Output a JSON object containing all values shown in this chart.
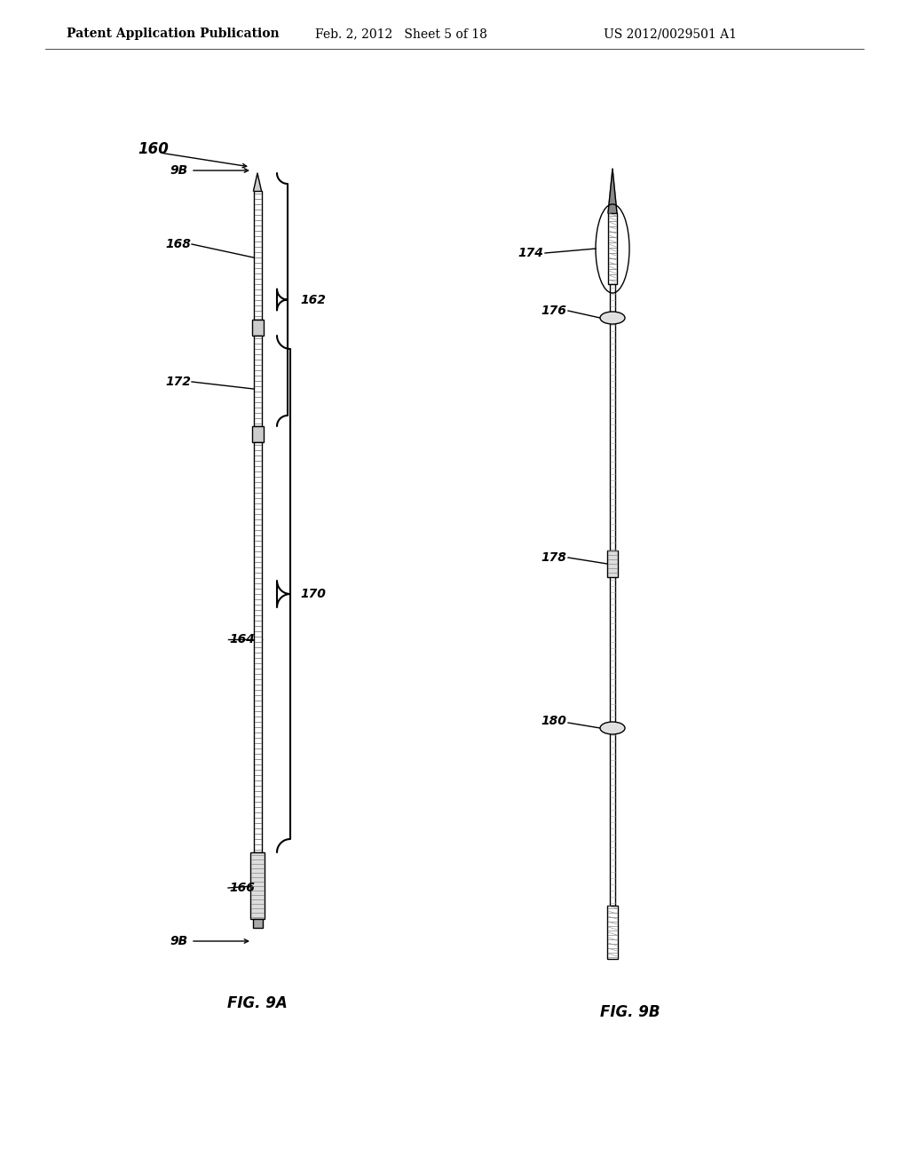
{
  "background_color": "#ffffff",
  "header_left": "Patent Application Publication",
  "header_center": "Feb. 2, 2012   Sheet 5 of 18",
  "header_right": "US 2012/0029501 A1",
  "fig_label_left": "FIG. 9A",
  "fig_label_right": "FIG. 9B",
  "line_color": "#000000",
  "font_size_header": 10,
  "font_size_ref": 11
}
